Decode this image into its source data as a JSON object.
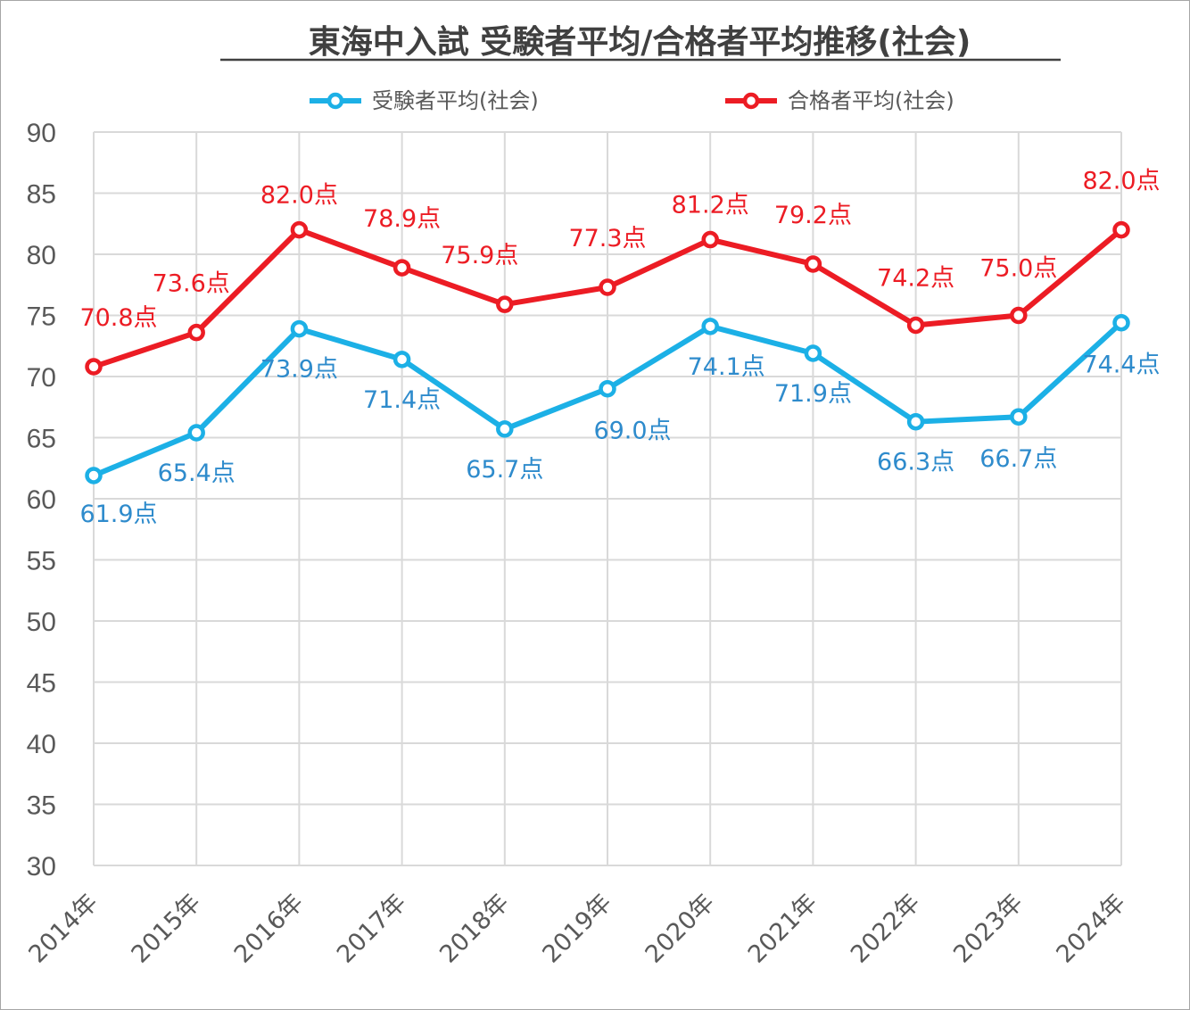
{
  "chart_data": {
    "type": "line",
    "title": "東海中入試 受験者平均/合格者平均推移(社会)",
    "categories": [
      "2014年",
      "2015年",
      "2016年",
      "2017年",
      "2018年",
      "2019年",
      "2020年",
      "2021年",
      "2022年",
      "2023年",
      "2024年"
    ],
    "series": [
      {
        "name": "受験者平均(社会)",
        "color": "#1cb0e6",
        "label_color": "#2e8bcc",
        "values": [
          61.9,
          65.4,
          73.9,
          71.4,
          65.7,
          69.0,
          74.1,
          71.9,
          66.3,
          66.7,
          74.4
        ],
        "labels": [
          "61.9点",
          "65.4点",
          "73.9点",
          "71.4点",
          "65.7点",
          "69.0点",
          "74.1点",
          "71.9点",
          "66.3点",
          "66.7点",
          "74.4点"
        ]
      },
      {
        "name": "合格者平均(社会)",
        "color": "#ec1c24",
        "label_color": "#ec1c24",
        "values": [
          70.8,
          73.6,
          82.0,
          78.9,
          75.9,
          77.3,
          81.2,
          79.2,
          74.2,
          75.0,
          82.0
        ],
        "labels": [
          "70.8点",
          "73.6点",
          "82.0点",
          "78.9点",
          "75.9点",
          "77.3点",
          "81.2点",
          "79.2点",
          "74.2点",
          "75.0点",
          "82.0点"
        ]
      }
    ],
    "ylim": [
      30,
      90
    ],
    "yticks": [
      "30",
      "35",
      "40",
      "45",
      "50",
      "55",
      "60",
      "65",
      "70",
      "75",
      "80",
      "85",
      "90"
    ],
    "grid": true,
    "legend": "top"
  }
}
